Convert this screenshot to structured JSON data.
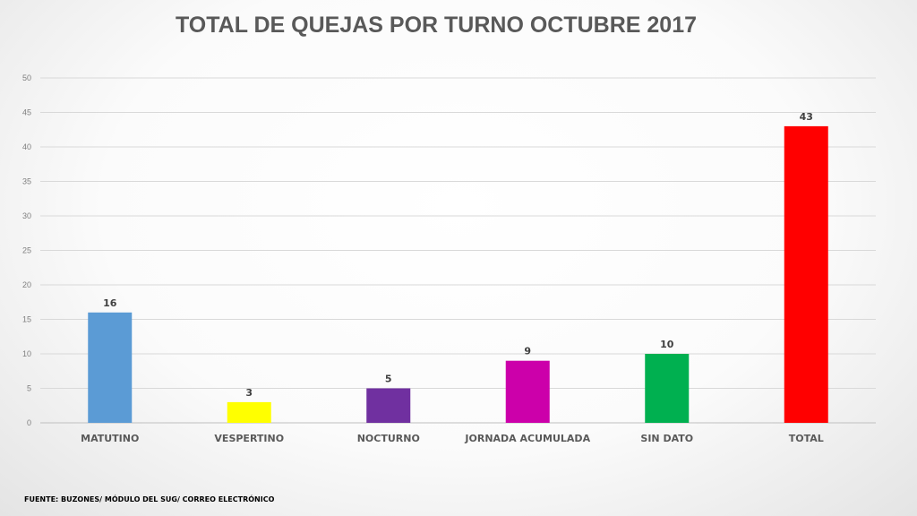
{
  "chart_data": {
    "type": "bar",
    "title": "TOTAL DE QUEJAS POR TURNO OCTUBRE 2017",
    "categories": [
      "MATUTINO",
      "VESPERTINO",
      "NOCTURNO",
      "JORNADA ACUMULADA",
      "SIN DATO",
      "TOTAL"
    ],
    "values": [
      16,
      3,
      5,
      9,
      10,
      43
    ],
    "colors": [
      "#5b9bd5",
      "#ffff00",
      "#7030a0",
      "#cc00aa",
      "#00b050",
      "#ff0000"
    ],
    "ylim": [
      0,
      50
    ],
    "yticks": [
      0,
      5,
      10,
      15,
      20,
      25,
      30,
      35,
      40,
      45,
      50
    ],
    "grid": true,
    "xlabel": "",
    "ylabel": ""
  },
  "source": "FUENTE: BUZONES/ MÓDULO DEL SUG/ CORREO ELECTRÓNICO"
}
